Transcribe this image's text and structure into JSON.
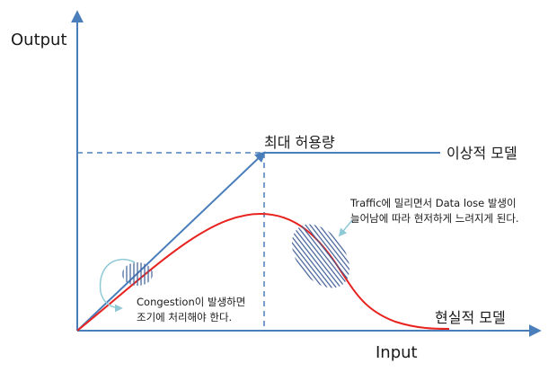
{
  "axes": {
    "y_label": "Output",
    "x_label": "Input"
  },
  "labels": {
    "max_capacity": "최대 허용량",
    "ideal_model": "이상적 모델",
    "real_model": "현실적 모델"
  },
  "annotations": {
    "congestion_line1": "Congestion이 발생하면",
    "congestion_line2": "조기에 처리해야 한다.",
    "traffic_line1": "Traffic에 밀리면서 Data lose 발생이",
    "traffic_line2": "늘어남에 따라 현저하게 느려지게 된다."
  },
  "colors": {
    "axis": "#4a7ebb",
    "ideal_line": "#4a7ebb",
    "real_curve": "#e8231f",
    "hatch": "#3e5c96",
    "text": "#1a1a1a"
  }
}
